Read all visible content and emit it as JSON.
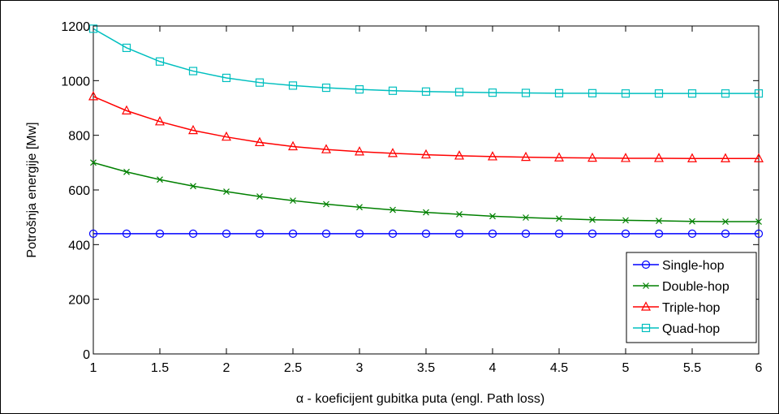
{
  "chart_data": {
    "type": "line",
    "title": "",
    "xlabel": "α - koeficijent gubitka puta (engl. Path loss)",
    "ylabel": "Potrošnja energije [Mw]",
    "xlim": [
      1,
      6
    ],
    "ylim": [
      0,
      1200
    ],
    "x_ticks": [
      1,
      1.5,
      2,
      2.5,
      3,
      3.5,
      4,
      4.5,
      5,
      5.5,
      6
    ],
    "y_ticks": [
      0,
      200,
      400,
      600,
      800,
      1000,
      1200
    ],
    "x_tick_labels": [
      "1",
      "1.5",
      "2",
      "2.5",
      "3",
      "3.5",
      "4",
      "4.5",
      "5",
      "5.5",
      "6"
    ],
    "y_tick_labels": [
      "0",
      "200",
      "400",
      "600",
      "800",
      "1000",
      "1200"
    ],
    "grid": false,
    "legend_position": "bottom-right",
    "x": [
      1,
      1.25,
      1.5,
      1.75,
      2,
      2.25,
      2.5,
      2.75,
      3,
      3.25,
      3.5,
      3.75,
      4,
      4.25,
      4.5,
      4.75,
      5,
      5.25,
      5.5,
      5.75,
      6
    ],
    "series": [
      {
        "name": "Single-hop",
        "color": "#0000ff",
        "marker": "circle",
        "values": [
          440,
          440,
          440,
          440,
          440,
          440,
          440,
          440,
          440,
          440,
          440,
          440,
          440,
          440,
          440,
          440,
          440,
          440,
          440,
          440,
          440
        ]
      },
      {
        "name": "Double-hop",
        "color": "#008000",
        "marker": "x",
        "values": [
          700,
          666,
          638,
          614,
          594,
          576,
          561,
          548,
          537,
          527,
          518,
          511,
          504,
          499,
          495,
          491,
          489,
          487,
          485,
          484,
          484
        ]
      },
      {
        "name": "Triple-hop",
        "color": "#ff0000",
        "marker": "triangle",
        "values": [
          942,
          890,
          850,
          818,
          794,
          774,
          759,
          748,
          740,
          734,
          729,
          725,
          722,
          720,
          718,
          717,
          716,
          716,
          715,
          715,
          715
        ]
      },
      {
        "name": "Quad-hop",
        "color": "#00bfbf",
        "marker": "square",
        "values": [
          1190,
          1120,
          1070,
          1035,
          1010,
          993,
          982,
          974,
          968,
          963,
          960,
          958,
          956,
          955,
          954,
          954,
          953,
          953,
          953,
          953,
          953
        ]
      }
    ]
  }
}
